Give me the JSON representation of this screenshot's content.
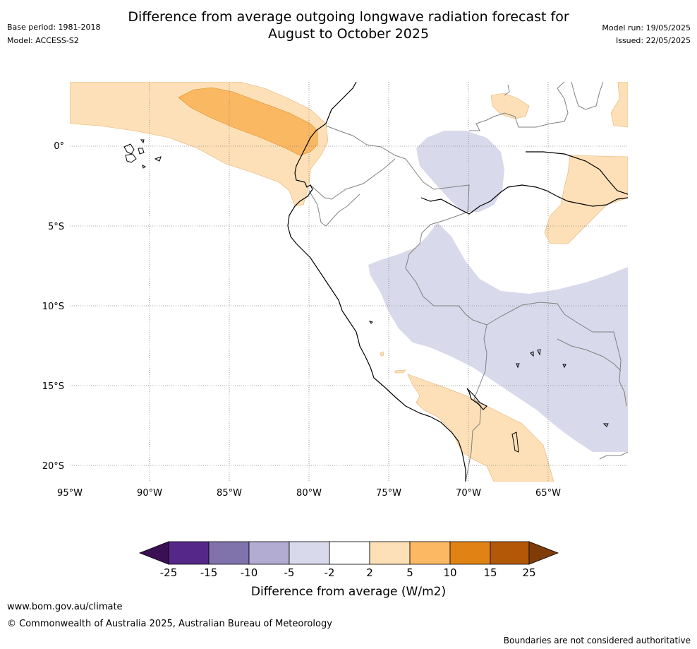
{
  "header": {
    "title_line1": "Difference from average outgoing longwave radiation forecast for",
    "title_line2": "August to October 2025",
    "base_period": "Base period: 1981-2018",
    "model": "Model: ACCESS-S2",
    "model_run": "Model run: 19/05/2025",
    "issued": "Issued: 22/05/2025"
  },
  "map": {
    "lat_labels": [
      "0°",
      "5°S",
      "10°S",
      "15°S",
      "20°S"
    ],
    "lon_labels": [
      "95°W",
      "90°W",
      "85°W",
      "80°W",
      "75°W",
      "70°W",
      "65°W"
    ],
    "extent": {
      "lon": [
        -95,
        -60
      ],
      "lat": [
        -21,
        4
      ]
    },
    "colors": {
      "pos_2_5": "#fde0b7",
      "pos_5_10": "#fbb862",
      "neg_5_2": "#d8d9ea",
      "coast": "#000000",
      "border": "#808080",
      "grid": "#888888"
    }
  },
  "colorbar": {
    "tick_labels": [
      "-25",
      "-15",
      "-10",
      "-5",
      "-2",
      "2",
      "5",
      "10",
      "15",
      "25"
    ],
    "colors": [
      "#3b0f53",
      "#542788",
      "#8073ac",
      "#b2abd2",
      "#d8daeb",
      "#ffffff",
      "#fee0b6",
      "#fdb863",
      "#e08214",
      "#b35806",
      "#7f3b08"
    ],
    "label": "Difference from average (W/m2)"
  },
  "footer": {
    "website": "www.bom.gov.au/climate",
    "copyright": "© Commonwealth of Australia 2025, Australian Bureau of Meteorology",
    "disclaimer": "Boundaries are not considered authoritative"
  }
}
